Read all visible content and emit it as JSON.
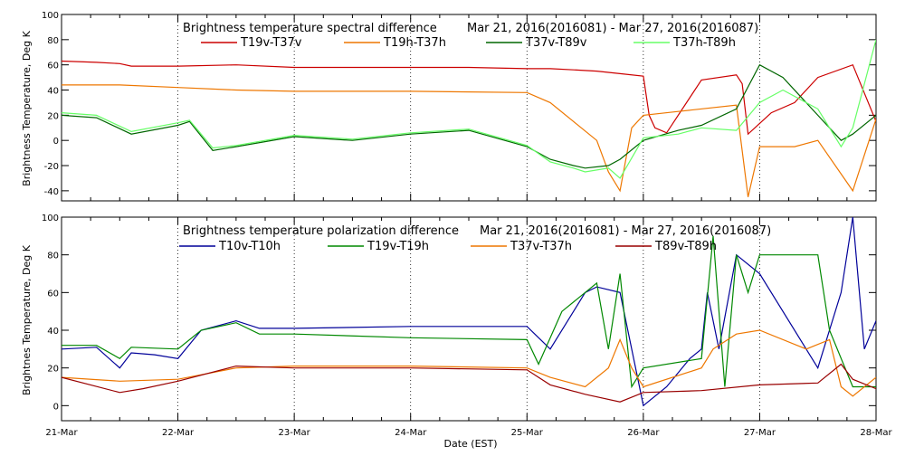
{
  "x_axis": {
    "label": "Date (EST)",
    "ticks": [
      "21-Mar",
      "22-Mar",
      "23-Mar",
      "24-Mar",
      "25-Mar",
      "26-Mar",
      "27-Mar",
      "28-Mar"
    ]
  },
  "chart_data": [
    {
      "type": "line",
      "title_left": "Brightness temperature spectral difference",
      "title_right": "Mar 21, 2016(2016081) - Mar 27, 2016(2016087)",
      "ylabel": "Brightness Temperature, Deg K",
      "xlabel": "",
      "x_unit": "days since 21-Mar 00:00 EST",
      "xlim": [
        0,
        7
      ],
      "ylim": [
        -48,
        100
      ],
      "yticks": [
        -40,
        -20,
        0,
        20,
        40,
        60,
        80,
        100
      ],
      "grid": "vertical dotted at each day",
      "legend_placement": "top, inside plot, 4 columns",
      "series": [
        {
          "name": "T19v-T37v",
          "color": "#cc0000",
          "x": [
            0,
            0.3,
            0.5,
            0.6,
            1,
            1.5,
            2,
            2.5,
            3,
            3.5,
            4,
            4.2,
            4.4,
            4.6,
            4.8,
            5,
            5.05,
            5.1,
            5.2,
            5.5,
            5.8,
            5.85,
            5.9,
            6.1,
            6.3,
            6.5,
            6.8,
            7
          ],
          "y": [
            63,
            62,
            61,
            59,
            59,
            60,
            58,
            58,
            58,
            58,
            57,
            57,
            56,
            55,
            53,
            51,
            20,
            10,
            6,
            48,
            52,
            45,
            5,
            22,
            30,
            50,
            60,
            15
          ]
        },
        {
          "name": "T19h-T37h",
          "color": "#ee7700",
          "x": [
            0,
            0.5,
            1,
            1.5,
            2,
            3,
            4,
            4.2,
            4.4,
            4.6,
            4.7,
            4.8,
            4.9,
            5,
            5.3,
            5.8,
            5.9,
            6,
            6.3,
            6.5,
            6.8,
            7
          ],
          "y": [
            44,
            44,
            42,
            40,
            39,
            39,
            38,
            30,
            15,
            0,
            -25,
            -40,
            10,
            20,
            23,
            28,
            -45,
            -5,
            -5,
            0,
            -40,
            17
          ]
        },
        {
          "name": "T37v-T89v",
          "color": "#006600",
          "x": [
            0,
            0.3,
            0.6,
            1,
            1.1,
            1.3,
            1.5,
            2,
            2.5,
            3,
            3.5,
            4,
            4.2,
            4.4,
            4.5,
            4.7,
            4.8,
            5,
            5.3,
            5.5,
            5.8,
            6,
            6.2,
            6.5,
            6.7,
            6.8,
            7
          ],
          "y": [
            20,
            18,
            5,
            12,
            15,
            -8,
            -5,
            3,
            0,
            5,
            8,
            -5,
            -15,
            -20,
            -22,
            -20,
            -15,
            0,
            8,
            12,
            25,
            60,
            50,
            20,
            0,
            5,
            20
          ]
        },
        {
          "name": "T37h-T89h",
          "color": "#66ff66",
          "x": [
            0,
            0.3,
            0.6,
            1,
            1.1,
            1.3,
            1.5,
            2,
            2.5,
            3,
            3.5,
            4,
            4.2,
            4.4,
            4.5,
            4.7,
            4.8,
            5,
            5.3,
            5.5,
            5.8,
            6,
            6.2,
            6.5,
            6.7,
            6.8,
            7
          ],
          "y": [
            22,
            20,
            7,
            14,
            16,
            -6,
            -4,
            4,
            1,
            6,
            9,
            -4,
            -17,
            -22,
            -25,
            -22,
            -30,
            2,
            5,
            10,
            8,
            30,
            40,
            25,
            -5,
            10,
            80
          ]
        }
      ]
    },
    {
      "type": "line",
      "title_left": "Brightness temperature polarization difference",
      "title_right": "Mar 21, 2016(2016081) - Mar 27, 2016(2016087)",
      "ylabel": "Brightnes Temperature, Deg K",
      "xlabel": "Date (EST)",
      "x_unit": "days since 21-Mar 00:00 EST",
      "xlim": [
        0,
        7
      ],
      "ylim": [
        -8,
        100
      ],
      "yticks": [
        0,
        20,
        40,
        60,
        80,
        100
      ],
      "grid": "vertical dotted at each day",
      "legend_placement": "top, inside plot, 4 columns",
      "series": [
        {
          "name": "T10v-T10h",
          "color": "#000099",
          "x": [
            0,
            0.3,
            0.5,
            0.6,
            0.8,
            1,
            1.2,
            1.5,
            1.7,
            2,
            3,
            4,
            4.2,
            4.5,
            4.6,
            4.8,
            5,
            5.2,
            5.4,
            5.5,
            5.55,
            5.65,
            5.8,
            6,
            6.5,
            6.7,
            6.8,
            6.9,
            7
          ],
          "y": [
            30,
            31,
            20,
            28,
            27,
            25,
            40,
            45,
            41,
            41,
            42,
            42,
            30,
            60,
            63,
            60,
            0,
            10,
            25,
            30,
            60,
            30,
            80,
            70,
            20,
            60,
            100,
            30,
            45
          ]
        },
        {
          "name": "T19v-T19h",
          "color": "#008800",
          "x": [
            0,
            0.3,
            0.5,
            0.6,
            1,
            1.2,
            1.5,
            1.7,
            2,
            3,
            4,
            4.1,
            4.3,
            4.5,
            4.6,
            4.7,
            4.8,
            4.9,
            5,
            5.5,
            5.6,
            5.7,
            5.8,
            5.9,
            6,
            6.5,
            6.6,
            6.8,
            7
          ],
          "y": [
            32,
            32,
            25,
            31,
            30,
            40,
            44,
            38,
            38,
            36,
            35,
            22,
            50,
            60,
            65,
            30,
            70,
            10,
            20,
            25,
            90,
            10,
            80,
            60,
            80,
            80,
            40,
            10,
            10
          ]
        },
        {
          "name": "T37v-T37h",
          "color": "#ee7700",
          "x": [
            0,
            0.5,
            1,
            1.5,
            2,
            3,
            4,
            4.2,
            4.5,
            4.7,
            4.8,
            4.9,
            5,
            5.5,
            5.6,
            5.8,
            6,
            6.4,
            6.6,
            6.7,
            6.8,
            7
          ],
          "y": [
            15,
            13,
            14,
            20,
            21,
            21,
            20,
            15,
            10,
            20,
            35,
            20,
            10,
            20,
            30,
            38,
            40,
            30,
            35,
            10,
            5,
            15
          ]
        },
        {
          "name": "T89v-T89h",
          "color": "#990000",
          "x": [
            0,
            0.5,
            0.7,
            1,
            1.5,
            2,
            3,
            4,
            4.2,
            4.5,
            4.8,
            5,
            5.5,
            6,
            6.5,
            6.7,
            6.8,
            7
          ],
          "y": [
            15,
            7,
            9,
            13,
            21,
            20,
            20,
            19,
            11,
            6,
            2,
            7,
            8,
            11,
            12,
            22,
            14,
            9
          ]
        }
      ]
    }
  ]
}
